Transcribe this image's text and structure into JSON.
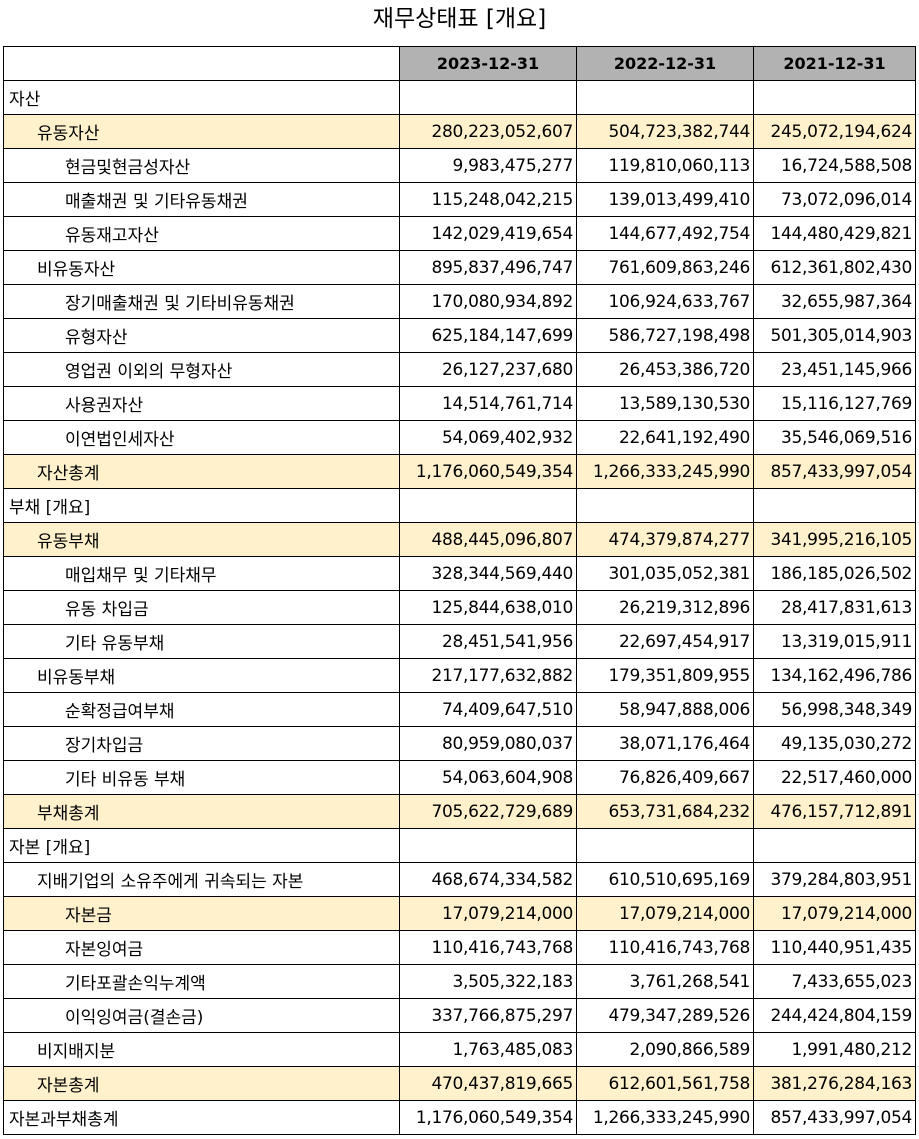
{
  "title": "재무상태표 [개요]",
  "headers": [
    "2023-12-31",
    "2022-12-31",
    "2021-12-31"
  ],
  "rows": [
    {
      "label": "자산",
      "indent": 0,
      "highlight": false,
      "values": [
        "",
        "",
        ""
      ]
    },
    {
      "label": "유동자산",
      "indent": 1,
      "highlight": true,
      "values": [
        "280,223,052,607",
        "504,723,382,744",
        "245,072,194,624"
      ]
    },
    {
      "label": "현금및현금성자산",
      "indent": 2,
      "highlight": false,
      "values": [
        "9,983,475,277",
        "119,810,060,113",
        "16,724,588,508"
      ]
    },
    {
      "label": "매출채권 및 기타유동채권",
      "indent": 2,
      "highlight": false,
      "values": [
        "115,248,042,215",
        "139,013,499,410",
        "73,072,096,014"
      ]
    },
    {
      "label": "유동재고자산",
      "indent": 2,
      "highlight": false,
      "values": [
        "142,029,419,654",
        "144,677,492,754",
        "144,480,429,821"
      ]
    },
    {
      "label": "비유동자산",
      "indent": 1,
      "highlight": false,
      "values": [
        "895,837,496,747",
        "761,609,863,246",
        "612,361,802,430"
      ]
    },
    {
      "label": "장기매출채권 및 기타비유동채권",
      "indent": 2,
      "highlight": false,
      "values": [
        "170,080,934,892",
        "106,924,633,767",
        "32,655,987,364"
      ]
    },
    {
      "label": "유형자산",
      "indent": 2,
      "highlight": false,
      "values": [
        "625,184,147,699",
        "586,727,198,498",
        "501,305,014,903"
      ]
    },
    {
      "label": "영업권 이외의 무형자산",
      "indent": 2,
      "highlight": false,
      "values": [
        "26,127,237,680",
        "26,453,386,720",
        "23,451,145,966"
      ]
    },
    {
      "label": "사용권자산",
      "indent": 2,
      "highlight": false,
      "values": [
        "14,514,761,714",
        "13,589,130,530",
        "15,116,127,769"
      ]
    },
    {
      "label": "이연법인세자산",
      "indent": 2,
      "highlight": false,
      "values": [
        "54,069,402,932",
        "22,641,192,490",
        "35,546,069,516"
      ]
    },
    {
      "label": "자산총계",
      "indent": 1,
      "highlight": true,
      "values": [
        "1,176,060,549,354",
        "1,266,333,245,990",
        "857,433,997,054"
      ]
    },
    {
      "label": "부채 [개요]",
      "indent": 0,
      "highlight": false,
      "values": [
        "",
        "",
        ""
      ]
    },
    {
      "label": "유동부채",
      "indent": 1,
      "highlight": true,
      "values": [
        "488,445,096,807",
        "474,379,874,277",
        "341,995,216,105"
      ]
    },
    {
      "label": "매입채무 및 기타채무",
      "indent": 2,
      "highlight": false,
      "values": [
        "328,344,569,440",
        "301,035,052,381",
        "186,185,026,502"
      ]
    },
    {
      "label": "유동 차입금",
      "indent": 2,
      "highlight": false,
      "values": [
        "125,844,638,010",
        "26,219,312,896",
        "28,417,831,613"
      ]
    },
    {
      "label": "기타 유동부채",
      "indent": 2,
      "highlight": false,
      "values": [
        "28,451,541,956",
        "22,697,454,917",
        "13,319,015,911"
      ]
    },
    {
      "label": "비유동부채",
      "indent": 1,
      "highlight": false,
      "values": [
        "217,177,632,882",
        "179,351,809,955",
        "134,162,496,786"
      ]
    },
    {
      "label": "순확정급여부채",
      "indent": 2,
      "highlight": false,
      "values": [
        "74,409,647,510",
        "58,947,888,006",
        "56,998,348,349"
      ]
    },
    {
      "label": "장기차입금",
      "indent": 2,
      "highlight": false,
      "values": [
        "80,959,080,037",
        "38,071,176,464",
        "49,135,030,272"
      ]
    },
    {
      "label": "기타 비유동 부채",
      "indent": 2,
      "highlight": false,
      "values": [
        "54,063,604,908",
        "76,826,409,667",
        "22,517,460,000"
      ]
    },
    {
      "label": "부채총계",
      "indent": 1,
      "highlight": true,
      "values": [
        "705,622,729,689",
        "653,731,684,232",
        "476,157,712,891"
      ]
    },
    {
      "label": "자본 [개요]",
      "indent": 0,
      "highlight": false,
      "values": [
        "",
        "",
        ""
      ]
    },
    {
      "label": "지배기업의 소유주에게 귀속되는 자본",
      "indent": 1,
      "highlight": false,
      "values": [
        "468,674,334,582",
        "610,510,695,169",
        "379,284,803,951"
      ]
    },
    {
      "label": "자본금",
      "indent": 2,
      "highlight": true,
      "values": [
        "17,079,214,000",
        "17,079,214,000",
        "17,079,214,000"
      ]
    },
    {
      "label": "자본잉여금",
      "indent": 2,
      "highlight": false,
      "values": [
        "110,416,743,768",
        "110,416,743,768",
        "110,440,951,435"
      ]
    },
    {
      "label": "기타포괄손익누계액",
      "indent": 2,
      "highlight": false,
      "values": [
        "3,505,322,183",
        "3,761,268,541",
        "7,433,655,023"
      ]
    },
    {
      "label": "이익잉여금(결손금)",
      "indent": 2,
      "highlight": false,
      "values": [
        "337,766,875,297",
        "479,347,289,526",
        "244,424,804,159"
      ]
    },
    {
      "label": "비지배지분",
      "indent": 1,
      "highlight": false,
      "values": [
        "1,763,485,083",
        "2,090,866,589",
        "1,991,480,212"
      ]
    },
    {
      "label": "자본총계",
      "indent": 1,
      "highlight": true,
      "values": [
        "470,437,819,665",
        "612,601,561,758",
        "381,276,284,163"
      ]
    },
    {
      "label": "자본과부채총계",
      "indent": 0,
      "highlight": false,
      "values": [
        "1,176,060,549,354",
        "1,266,333,245,990",
        "857,433,997,054"
      ]
    }
  ]
}
